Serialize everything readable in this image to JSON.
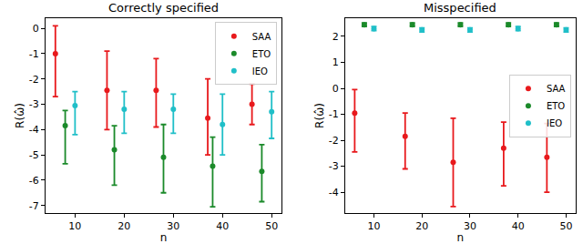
{
  "chart_data": [
    {
      "type": "scatter",
      "title": "Correctly specified",
      "x_label": "n",
      "y_label": "R(ω̂)",
      "xlim": [
        4,
        52
      ],
      "xticks": [
        10,
        20,
        30,
        40,
        50
      ],
      "ylim": [
        -7.3,
        0.4
      ],
      "yticks": [
        -7,
        -6,
        -5,
        -4,
        -3,
        -2,
        -1,
        0
      ],
      "grid": false,
      "legend": "upper right",
      "marker": "circle",
      "series": [
        {
          "name": "SAA",
          "color": "#e8191c",
          "x": [
            6,
            16.5,
            26.5,
            37,
            46
          ],
          "values": [
            -1.0,
            -2.45,
            -2.45,
            -3.55,
            -3.0
          ],
          "lower": [
            -2.7,
            -4.0,
            -3.9,
            -5.0,
            -3.8
          ],
          "upper": [
            0.1,
            -0.9,
            -1.2,
            -2.0,
            -2.2
          ]
        },
        {
          "name": "ETO",
          "color": "#1b8a2a",
          "x": [
            8,
            18,
            28,
            38,
            48
          ],
          "values": [
            -3.85,
            -4.8,
            -5.1,
            -5.45,
            -5.65
          ],
          "lower": [
            -5.35,
            -6.2,
            -6.5,
            -7.05,
            -6.85
          ],
          "upper": [
            -3.25,
            -3.85,
            -3.8,
            -4.3,
            -4.6
          ]
        },
        {
          "name": "IEO",
          "color": "#20bfc8",
          "x": [
            10,
            20,
            30,
            40,
            50
          ],
          "values": [
            -3.05,
            -3.2,
            -3.2,
            -3.8,
            -3.3
          ],
          "lower": [
            -4.2,
            -4.15,
            -4.15,
            -5.0,
            -4.35
          ],
          "upper": [
            -2.5,
            -2.5,
            -2.6,
            -2.6,
            -2.5
          ]
        }
      ]
    },
    {
      "type": "scatter",
      "title": "Misspecified",
      "x_label": "n",
      "y_label": "R(ω̂)",
      "xlim": [
        4,
        52
      ],
      "xticks": [
        10,
        20,
        30,
        40,
        50
      ],
      "ylim": [
        -4.8,
        2.7
      ],
      "yticks": [
        -4,
        -3,
        -2,
        -1,
        0,
        1,
        2
      ],
      "grid": false,
      "legend": "center right",
      "marker": "circle",
      "series": [
        {
          "name": "SAA",
          "color": "#e8191c",
          "x": [
            6,
            16.5,
            26.5,
            37,
            46
          ],
          "values": [
            -0.95,
            -1.85,
            -2.85,
            -2.3,
            -2.65
          ],
          "lower": [
            -2.45,
            -3.1,
            -4.55,
            -3.75,
            -4.0
          ],
          "upper": [
            -0.05,
            -0.95,
            -1.15,
            -1.3,
            -1.35
          ]
        },
        {
          "name": "ETO",
          "color": "#1b8a2a",
          "x": [
            8,
            18,
            28,
            38,
            48
          ],
          "values": [
            2.45,
            2.45,
            2.45,
            2.45,
            2.45
          ],
          "lower": [
            2.38,
            2.38,
            2.38,
            2.38,
            2.38
          ],
          "upper": [
            2.52,
            2.52,
            2.52,
            2.52,
            2.52
          ]
        },
        {
          "name": "IEO",
          "color": "#20bfc8",
          "x": [
            10,
            20,
            30,
            40,
            50
          ],
          "values": [
            2.3,
            2.25,
            2.25,
            2.3,
            2.25
          ],
          "lower": [
            2.22,
            2.17,
            2.17,
            2.22,
            2.17
          ],
          "upper": [
            2.38,
            2.33,
            2.33,
            2.38,
            2.33
          ]
        }
      ]
    }
  ]
}
